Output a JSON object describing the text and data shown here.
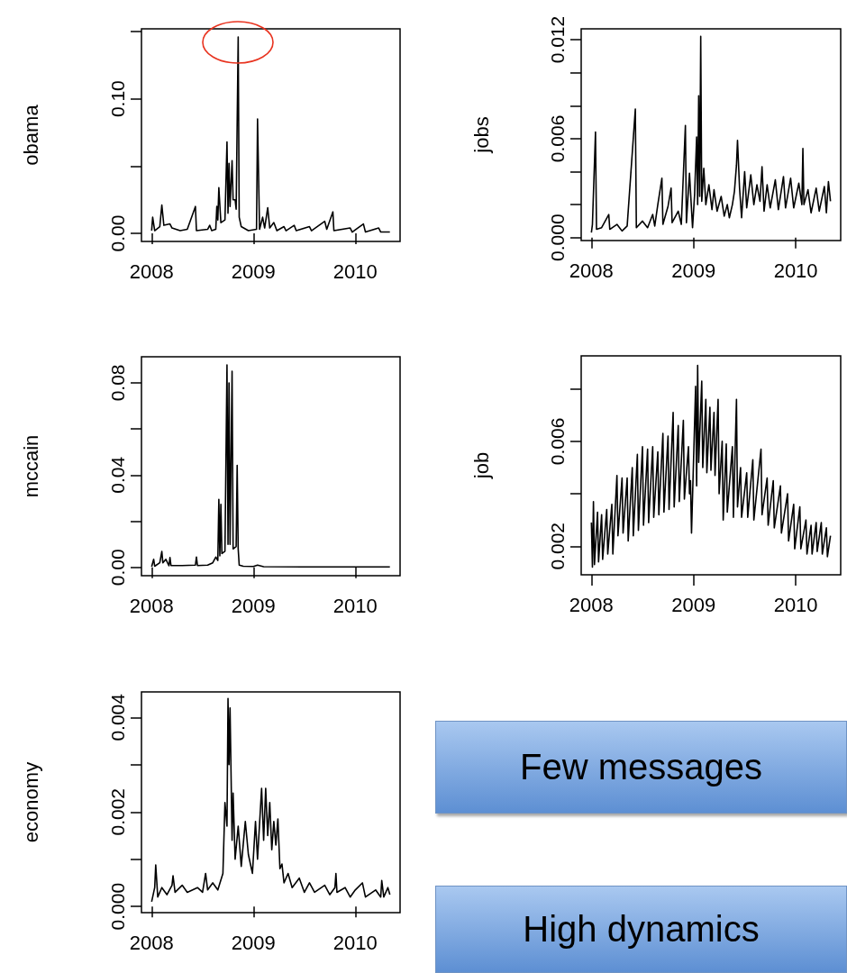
{
  "chart_data": [
    {
      "type": "line",
      "ylabel": "obama",
      "xlim": [
        2007.9,
        2010.44
      ],
      "xticks": [
        2008,
        2009,
        2010
      ],
      "ylim": [
        -0.006,
        0.152
      ],
      "yticks": [
        {
          "value": 0,
          "label": "0.00"
        },
        {
          "value": 0.05,
          "label": null
        },
        {
          "value": 0.1,
          "label": "0.10"
        },
        {
          "value": 0.15,
          "label": null
        }
      ],
      "grid": false,
      "x": [
        2008.0,
        2008.01,
        2008.03,
        2008.08,
        2008.1,
        2008.12,
        2008.18,
        2008.2,
        2008.28,
        2008.35,
        2008.43,
        2008.44,
        2008.55,
        2008.57,
        2008.59,
        2008.63,
        2008.64,
        2008.65,
        2008.66,
        2008.68,
        2008.72,
        2008.74,
        2008.75,
        2008.76,
        2008.77,
        2008.79,
        2008.8,
        2008.82,
        2008.83,
        2008.85,
        2008.86,
        2008.88,
        2008.95,
        2009.03,
        2009.04,
        2009.06,
        2009.09,
        2009.11,
        2009.14,
        2009.16,
        2009.2,
        2009.23,
        2009.3,
        2009.32,
        2009.4,
        2009.42,
        2009.55,
        2009.57,
        2009.7,
        2009.72,
        2009.78,
        2009.79,
        2009.95,
        2009.97,
        2010.08,
        2010.1,
        2010.23,
        2010.25,
        2010.34
      ],
      "series": [
        {
          "color": "#000000",
          "values": [
            0.002,
            0.012,
            0.002,
            0.005,
            0.021,
            0.006,
            0.007,
            0.004,
            0.002,
            0.003,
            0.02,
            0.002,
            0.003,
            0.006,
            0.002,
            0.003,
            0.02,
            0.01,
            0.034,
            0.008,
            0.01,
            0.068,
            0.015,
            0.052,
            0.02,
            0.054,
            0.025,
            0.025,
            0.018,
            0.146,
            0.012,
            0.005,
            0.002,
            0.003,
            0.085,
            0.003,
            0.012,
            0.004,
            0.019,
            0.004,
            0.008,
            0.002,
            0.005,
            0.002,
            0.006,
            0.002,
            0.005,
            0.002,
            0.009,
            0.003,
            0.016,
            0.002,
            0.004,
            0.001,
            0.007,
            0.001,
            0.004,
            0.001,
            0.001
          ]
        }
      ]
    },
    {
      "type": "line",
      "ylabel": "jobs",
      "xlim": [
        2007.9,
        2010.44
      ],
      "xticks": [
        2008,
        2009,
        2010
      ],
      "ylim": [
        -0.00018,
        0.01266
      ],
      "yticks": [
        {
          "value": 0,
          "label": "0.000"
        },
        {
          "value": 0.002,
          "label": null
        },
        {
          "value": 0.004,
          "label": null
        },
        {
          "value": 0.006,
          "label": "0.006"
        },
        {
          "value": 0.008,
          "label": null
        },
        {
          "value": 0.01,
          "label": null
        },
        {
          "value": 0.012,
          "label": "0.012"
        }
      ],
      "grid": false,
      "x": [
        2008.0,
        2008.01,
        2008.04,
        2008.05,
        2008.1,
        2008.17,
        2008.18,
        2008.25,
        2008.3,
        2008.35,
        2008.43,
        2008.44,
        2008.5,
        2008.55,
        2008.6,
        2008.62,
        2008.65,
        2008.69,
        2008.7,
        2008.75,
        2008.78,
        2008.79,
        2008.85,
        2008.88,
        2008.92,
        2008.93,
        2008.96,
        2008.99,
        2009.01,
        2009.03,
        2009.04,
        2009.05,
        2009.06,
        2009.07,
        2009.08,
        2009.1,
        2009.12,
        2009.15,
        2009.18,
        2009.2,
        2009.23,
        2009.27,
        2009.3,
        2009.33,
        2009.35,
        2009.38,
        2009.4,
        2009.42,
        2009.43,
        2009.45,
        2009.47,
        2009.5,
        2009.52,
        2009.56,
        2009.59,
        2009.62,
        2009.65,
        2009.67,
        2009.69,
        2009.72,
        2009.75,
        2009.8,
        2009.83,
        2009.88,
        2009.9,
        2009.95,
        2009.98,
        2010.03,
        2010.06,
        2010.07,
        2010.08,
        2010.12,
        2010.15,
        2010.2,
        2010.23,
        2010.28,
        2010.3,
        2010.32,
        2010.34
      ],
      "series": [
        {
          "color": "#000000",
          "values": [
            0.0003,
            0.0008,
            0.0064,
            0.0005,
            0.0006,
            0.0014,
            0.0005,
            0.0008,
            0.0004,
            0.0007,
            0.0078,
            0.0006,
            0.001,
            0.0006,
            0.0014,
            0.0007,
            0.002,
            0.0036,
            0.0008,
            0.0019,
            0.003,
            0.0009,
            0.0016,
            0.0008,
            0.0068,
            0.0009,
            0.0039,
            0.0006,
            0.0026,
            0.0061,
            0.002,
            0.0086,
            0.0025,
            0.0122,
            0.0022,
            0.0042,
            0.002,
            0.0032,
            0.0017,
            0.0029,
            0.0016,
            0.0025,
            0.0013,
            0.002,
            0.0012,
            0.002,
            0.0028,
            0.0044,
            0.0059,
            0.003,
            0.0012,
            0.004,
            0.0018,
            0.0038,
            0.002,
            0.0032,
            0.0022,
            0.0043,
            0.0016,
            0.0032,
            0.0018,
            0.0035,
            0.0017,
            0.0037,
            0.0018,
            0.0036,
            0.0018,
            0.0033,
            0.002,
            0.0054,
            0.002,
            0.0029,
            0.0015,
            0.003,
            0.0016,
            0.0031,
            0.0015,
            0.0034,
            0.0022
          ]
        }
      ]
    },
    {
      "type": "line",
      "ylabel": "mccain",
      "xlim": [
        2007.9,
        2010.44
      ],
      "xticks": [
        2008,
        2009,
        2010
      ],
      "ylim": [
        -0.0036,
        0.0913
      ],
      "yticks": [
        {
          "value": 0,
          "label": "0.00"
        },
        {
          "value": 0.02,
          "label": null
        },
        {
          "value": 0.04,
          "label": "0.04"
        },
        {
          "value": 0.06,
          "label": null
        },
        {
          "value": 0.08,
          "label": "0.08"
        }
      ],
      "grid": false,
      "x": [
        2008.0,
        2008.02,
        2008.03,
        2008.08,
        2008.1,
        2008.11,
        2008.14,
        2008.17,
        2008.18,
        2008.19,
        2008.3,
        2008.43,
        2008.44,
        2008.45,
        2008.55,
        2008.6,
        2008.63,
        2008.65,
        2008.66,
        2008.67,
        2008.68,
        2008.69,
        2008.72,
        2008.74,
        2008.75,
        2008.76,
        2008.77,
        2008.79,
        2008.8,
        2008.83,
        2008.84,
        2008.85,
        2008.86,
        2008.9,
        2009.0,
        2009.04,
        2009.1,
        2009.5,
        2010.0,
        2010.34
      ],
      "series": [
        {
          "color": "#000000",
          "values": [
            0.0003,
            0.0035,
            0.0005,
            0.002,
            0.0069,
            0.002,
            0.0035,
            0.0007,
            0.0043,
            0.0008,
            0.0008,
            0.001,
            0.0045,
            0.0008,
            0.001,
            0.002,
            0.0045,
            0.003,
            0.0295,
            0.005,
            0.0273,
            0.006,
            0.007,
            0.0878,
            0.01,
            0.08,
            0.01,
            0.085,
            0.008,
            0.009,
            0.0442,
            0.008,
            0.001,
            0.0005,
            0.0004,
            0.001,
            0.0003,
            0.0002,
            0.0002,
            0.0002
          ]
        }
      ]
    },
    {
      "type": "line",
      "ylabel": "job",
      "xlim": [
        2007.9,
        2010.44
      ],
      "xticks": [
        2008,
        2009,
        2010
      ],
      "ylim": [
        0.00091,
        0.00926
      ],
      "yticks": [
        {
          "value": 0.002,
          "label": "0.002"
        },
        {
          "value": 0.004,
          "label": null
        },
        {
          "value": 0.006,
          "label": "0.006"
        },
        {
          "value": 0.008,
          "label": null
        }
      ],
      "grid": false,
      "x": [
        2008.0,
        2008.01,
        2008.02,
        2008.03,
        2008.06,
        2008.07,
        2008.1,
        2008.11,
        2008.15,
        2008.16,
        2008.2,
        2008.21,
        2008.25,
        2008.26,
        2008.3,
        2008.31,
        2008.35,
        2008.36,
        2008.4,
        2008.41,
        2008.45,
        2008.46,
        2008.5,
        2008.51,
        2008.55,
        2008.56,
        2008.6,
        2008.61,
        2008.65,
        2008.66,
        2008.7,
        2008.71,
        2008.75,
        2008.76,
        2008.8,
        2008.81,
        2008.85,
        2008.86,
        2008.9,
        2008.91,
        2008.95,
        2008.96,
        2008.97,
        2008.98,
        2009.02,
        2009.03,
        2009.04,
        2009.05,
        2009.08,
        2009.09,
        2009.12,
        2009.13,
        2009.16,
        2009.17,
        2009.2,
        2009.21,
        2009.24,
        2009.25,
        2009.28,
        2009.29,
        2009.32,
        2009.33,
        2009.38,
        2009.39,
        2009.42,
        2009.43,
        2009.46,
        2009.47,
        2009.52,
        2009.53,
        2009.58,
        2009.59,
        2009.66,
        2009.67,
        2009.72,
        2009.73,
        2009.78,
        2009.79,
        2009.85,
        2009.86,
        2009.92,
        2009.93,
        2009.98,
        2009.99,
        2010.04,
        2010.05,
        2010.1,
        2010.11,
        2010.15,
        2010.16,
        2010.2,
        2010.21,
        2010.25,
        2010.26,
        2010.3,
        2010.31,
        2010.34
      ],
      "series": [
        {
          "color": "#000000",
          "values": [
            0.0029,
            0.0012,
            0.0037,
            0.0013,
            0.0033,
            0.0014,
            0.0032,
            0.0015,
            0.0034,
            0.0017,
            0.0036,
            0.0017,
            0.0047,
            0.0024,
            0.0046,
            0.0025,
            0.0046,
            0.0022,
            0.005,
            0.0024,
            0.0055,
            0.0026,
            0.0058,
            0.0028,
            0.0057,
            0.0029,
            0.0058,
            0.0031,
            0.0056,
            0.0032,
            0.0063,
            0.0033,
            0.0062,
            0.0034,
            0.0071,
            0.0035,
            0.0066,
            0.0037,
            0.0068,
            0.0038,
            0.0058,
            0.004,
            0.0045,
            0.0025,
            0.0081,
            0.0043,
            0.0089,
            0.0052,
            0.0083,
            0.005,
            0.0076,
            0.0048,
            0.0073,
            0.0049,
            0.0071,
            0.0047,
            0.0076,
            0.004,
            0.006,
            0.003,
            0.0059,
            0.0033,
            0.0058,
            0.0031,
            0.0076,
            0.0035,
            0.005,
            0.0031,
            0.0048,
            0.0031,
            0.0053,
            0.003,
            0.0057,
            0.0032,
            0.0046,
            0.0028,
            0.0045,
            0.0027,
            0.0043,
            0.0025,
            0.004,
            0.0022,
            0.0036,
            0.0019,
            0.0035,
            0.0019,
            0.003,
            0.0017,
            0.0028,
            0.0017,
            0.0029,
            0.0018,
            0.0029,
            0.0017,
            0.0027,
            0.0016,
            0.0024
          ]
        }
      ]
    },
    {
      "type": "line",
      "ylabel": "economy",
      "xlim": [
        2007.9,
        2010.44
      ],
      "xticks": [
        2008,
        2009,
        2010
      ],
      "ylim": [
        -0.00013,
        0.00454
      ],
      "yticks": [
        {
          "value": 0,
          "label": "0.000"
        },
        {
          "value": 0.001,
          "label": null
        },
        {
          "value": 0.002,
          "label": "0.002"
        },
        {
          "value": 0.003,
          "label": null
        },
        {
          "value": 0.004,
          "label": "0.004"
        }
      ],
      "grid": false,
      "x": [
        2008.0,
        2008.03,
        2008.04,
        2008.06,
        2008.1,
        2008.15,
        2008.2,
        2008.21,
        2008.23,
        2008.3,
        2008.35,
        2008.45,
        2008.5,
        2008.53,
        2008.55,
        2008.6,
        2008.65,
        2008.7,
        2008.72,
        2008.74,
        2008.75,
        2008.76,
        2008.77,
        2008.79,
        2008.8,
        2008.82,
        2008.85,
        2008.88,
        2008.92,
        2008.95,
        2008.98,
        2008.99,
        2009.02,
        2009.04,
        2009.08,
        2009.1,
        2009.12,
        2009.14,
        2009.16,
        2009.18,
        2009.2,
        2009.22,
        2009.24,
        2009.26,
        2009.28,
        2009.3,
        2009.34,
        2009.38,
        2009.45,
        2009.5,
        2009.55,
        2009.6,
        2009.7,
        2009.75,
        2009.8,
        2009.81,
        2009.82,
        2009.9,
        2009.95,
        2010.0,
        2010.07,
        2010.1,
        2010.2,
        2010.25,
        2010.26,
        2010.28,
        2010.32,
        2010.34
      ],
      "series": [
        {
          "color": "#000000",
          "values": [
            0.0001,
            0.0004,
            0.00088,
            0.0002,
            0.0004,
            0.00025,
            0.00045,
            0.00065,
            0.0003,
            0.00045,
            0.0003,
            0.0004,
            0.0003,
            0.0007,
            0.00035,
            0.0005,
            0.00035,
            0.0007,
            0.0022,
            0.0017,
            0.0044,
            0.003,
            0.0042,
            0.0014,
            0.0024,
            0.001,
            0.0017,
            0.00085,
            0.0018,
            0.0011,
            0.0008,
            0.0007,
            0.0018,
            0.001,
            0.0025,
            0.0014,
            0.0025,
            0.0015,
            0.0022,
            0.0012,
            0.0018,
            0.0013,
            0.00185,
            0.0008,
            0.0009,
            0.0005,
            0.0007,
            0.0004,
            0.0006,
            0.0003,
            0.0005,
            0.0003,
            0.00045,
            0.00025,
            0.0004,
            0.0007,
            0.0003,
            0.0004,
            0.0002,
            0.00035,
            0.0005,
            0.0002,
            0.00035,
            0.0002,
            0.00055,
            0.0002,
            0.0004,
            0.00025
          ]
        }
      ]
    },
    {
      "type": "other",
      "annotations": [
        "Few messages",
        "High dynamics"
      ]
    }
  ]
}
